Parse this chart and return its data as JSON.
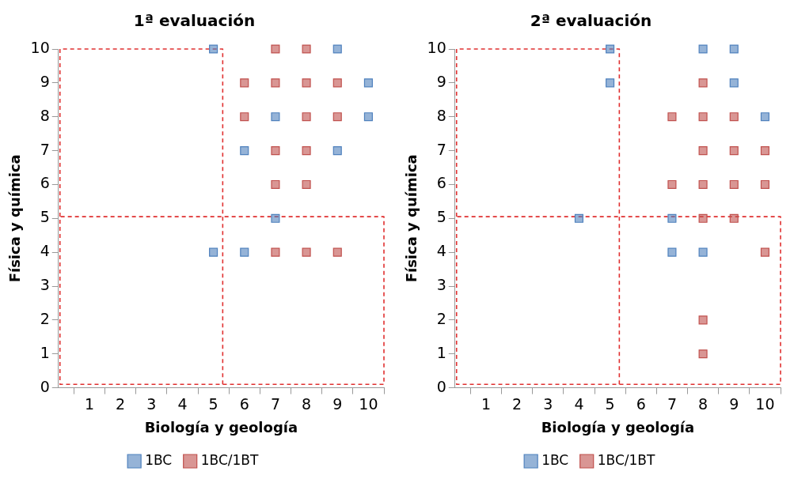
{
  "chart_data": [
    {
      "type": "scatter",
      "title": "1ª evaluación",
      "xlabel": "Biología y geología",
      "ylabel": "Física y química",
      "xlim": [
        0,
        10.5
      ],
      "ylim": [
        0,
        10
      ],
      "xticks": [
        {
          "value": 0.5,
          "label": null
        },
        1,
        {
          "value": 1.5,
          "label": null
        },
        2,
        {
          "value": 2.5,
          "label": null
        },
        3,
        {
          "value": 3.5,
          "label": null
        },
        4,
        {
          "value": 4.5,
          "label": null
        },
        5,
        {
          "value": 5.5,
          "label": null
        },
        6,
        {
          "value": 6.5,
          "label": null
        },
        7,
        {
          "value": 7.5,
          "label": null
        },
        8,
        {
          "value": 8.5,
          "label": null
        },
        9,
        {
          "value": 9.5,
          "label": null
        },
        10,
        {
          "value": 10.5,
          "label": null
        }
      ],
      "yticks": [
        0,
        1,
        2,
        3,
        4,
        5,
        6,
        7,
        8,
        9,
        10
      ],
      "grid": false,
      "legend": "bottom",
      "marker": "square",
      "series": [
        {
          "name": "1BC",
          "color": "#4f81bd",
          "x": [
            5,
            9,
            10,
            7,
            10,
            6,
            9,
            7,
            5,
            6
          ],
          "values": [
            10,
            10,
            9,
            8,
            8,
            7,
            7,
            5,
            4,
            4
          ]
        },
        {
          "name": "1BC/1BT",
          "color": "#c0504d",
          "x": [
            7,
            8,
            6,
            7,
            8,
            9,
            6,
            8,
            9,
            7,
            8,
            7,
            8,
            7,
            8,
            9
          ],
          "values": [
            10,
            10,
            9,
            9,
            9,
            9,
            8,
            8,
            8,
            7,
            7,
            6,
            6,
            4,
            4,
            4
          ]
        },
        {
          "type": "line",
          "color": "#e03030",
          "line_style": "dashed",
          "marker": "none",
          "x": [
            5.3,
            5.3,
            0.05,
            0.05,
            10.5,
            10.5,
            0.05
          ],
          "values": [
            0.1,
            10,
            10,
            0.1,
            0.1,
            5.05,
            5.05
          ]
        }
      ]
    },
    {
      "type": "scatter",
      "title": "2ª evaluación",
      "xlabel": "Biología y geología",
      "ylabel": "Física y química",
      "xlim": [
        0,
        10.5
      ],
      "ylim": [
        0,
        10
      ],
      "xticks": [
        {
          "value": 0.5,
          "label": null
        },
        1,
        {
          "value": 1.5,
          "label": null
        },
        2,
        {
          "value": 2.5,
          "label": null
        },
        3,
        {
          "value": 3.5,
          "label": null
        },
        4,
        {
          "value": 4.5,
          "label": null
        },
        5,
        {
          "value": 5.5,
          "label": null
        },
        6,
        {
          "value": 6.5,
          "label": null
        },
        7,
        {
          "value": 7.5,
          "label": null
        },
        8,
        {
          "value": 8.5,
          "label": null
        },
        9,
        {
          "value": 9.5,
          "label": null
        },
        10,
        {
          "value": 10.5,
          "label": null
        }
      ],
      "yticks": [
        0,
        1,
        2,
        3,
        4,
        5,
        6,
        7,
        8,
        9,
        10
      ],
      "grid": false,
      "legend": "bottom",
      "marker": "square",
      "series": [
        {
          "name": "1BC",
          "color": "#4f81bd",
          "x": [
            5,
            5,
            8,
            9,
            9,
            10,
            4,
            7,
            7,
            8
          ],
          "values": [
            10,
            9,
            10,
            10,
            9,
            8,
            5,
            5,
            4,
            4
          ]
        },
        {
          "name": "1BC/1BT",
          "color": "#c0504d",
          "x": [
            8,
            7,
            8,
            9,
            8,
            9,
            10,
            7,
            8,
            9,
            10,
            8,
            9,
            10,
            8,
            8
          ],
          "values": [
            9,
            8,
            8,
            8,
            7,
            7,
            7,
            6,
            6,
            6,
            6,
            5,
            5,
            4,
            2,
            1
          ]
        },
        {
          "type": "line",
          "color": "#e03030",
          "line_style": "dashed",
          "marker": "none",
          "x": [
            5.3,
            5.3,
            0.05,
            0.05,
            10.5,
            10.5,
            0.05
          ],
          "values": [
            0.1,
            10,
            10,
            0.1,
            0.1,
            5.05,
            5.05
          ]
        }
      ]
    }
  ]
}
